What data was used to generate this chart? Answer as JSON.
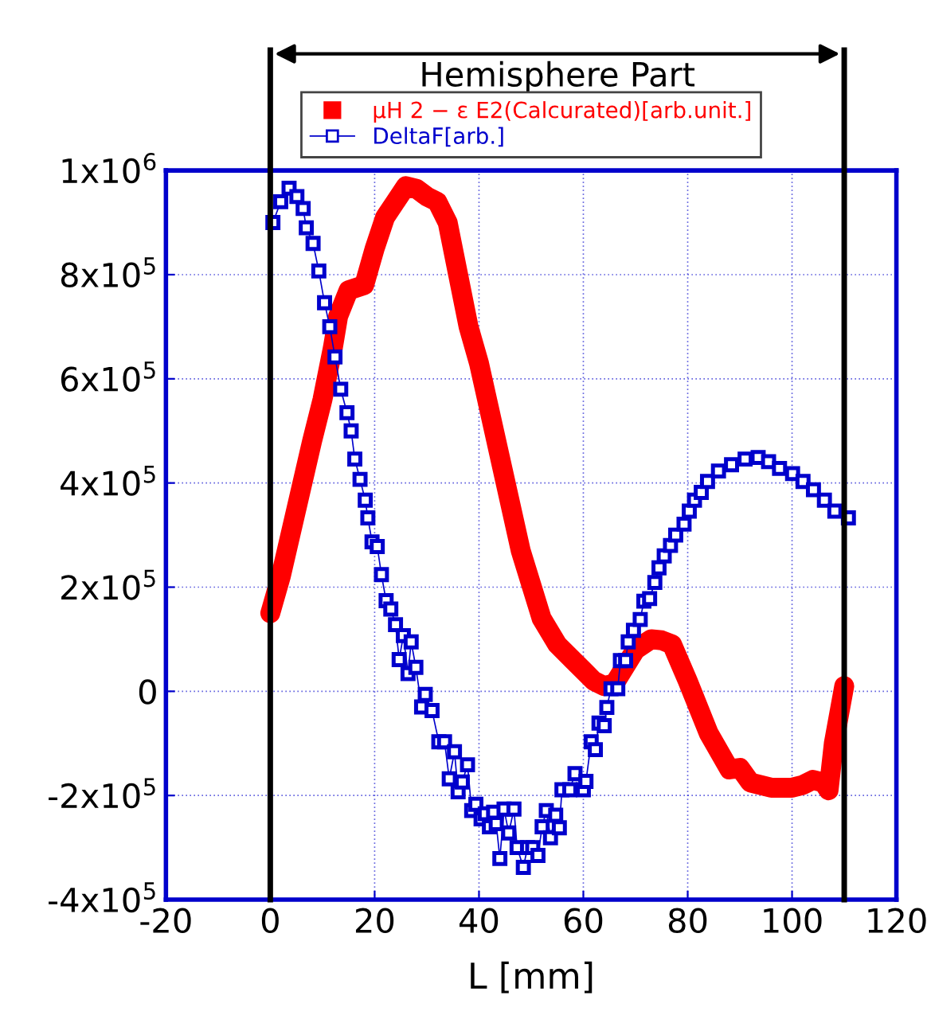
{
  "chart_data": {
    "type": "line",
    "xlabel": "L [mm]",
    "annotations": [
      "Hemisphere Part"
    ],
    "xlim": [
      -20,
      120
    ],
    "xticks": [
      -20,
      0,
      20,
      40,
      60,
      80,
      100,
      120
    ],
    "ylim": [
      -400000,
      1000000
    ],
    "yticks": [
      {
        "value": -400000,
        "label": "-4x10$^{5}$"
      },
      {
        "value": -200000,
        "label": "-2x10$^{5}$"
      },
      0,
      {
        "value": 200000,
        "label": "2x10$^{5}$"
      },
      {
        "value": 400000,
        "label": "4x10$^{5}$"
      },
      {
        "value": 600000,
        "label": "6x10$^{5}$"
      },
      {
        "value": 800000,
        "label": "8x10$^{5}$"
      },
      {
        "value": 1000000,
        "label": "1x10$^{6}$"
      }
    ],
    "grid": true,
    "legend": "top",
    "ref_lines": [
      {
        "axis": "x",
        "value": 0,
        "color": "#000000"
      },
      {
        "axis": "x",
        "value": 110,
        "color": "#000000"
      }
    ],
    "series": [
      {
        "name": "μH 2 − ε E2(Calcurated)[arb.unit.]",
        "color": "#ff0000",
        "marker": "none",
        "line_style": "solid",
        "x": [
          0,
          2,
          5,
          8,
          10,
          12,
          13,
          15,
          18,
          20,
          22,
          24,
          26,
          28,
          30,
          32,
          34,
          36,
          38,
          40,
          44,
          48,
          52,
          55,
          58,
          60,
          62,
          64,
          66,
          70,
          73,
          75,
          77,
          80,
          84,
          88,
          90,
          92,
          96,
          100,
          102,
          104,
          106,
          107,
          108,
          110
        ],
        "values": [
          150000,
          220000,
          350000,
          480000,
          560000,
          660000,
          720000,
          770000,
          780000,
          850000,
          910000,
          940000,
          970000,
          965000,
          950000,
          940000,
          900000,
          800000,
          700000,
          630000,
          450000,
          270000,
          140000,
          90000,
          60000,
          40000,
          20000,
          10000,
          15000,
          80000,
          100000,
          98000,
          90000,
          20000,
          -80000,
          -150000,
          -147000,
          -175000,
          -185000,
          -185000,
          -180000,
          -170000,
          -175000,
          -190000,
          -100000,
          10000
        ]
      },
      {
        "name": "DeltaF[arb.]",
        "color": "#0000cc",
        "marker": "square",
        "line_style": "solid",
        "x": [
          0.5,
          2,
          3.6,
          5.1,
          6.3,
          6.9,
          8.2,
          9.3,
          10.4,
          11.4,
          12.4,
          13.5,
          14.7,
          15.5,
          16.2,
          17.2,
          18.2,
          18.7,
          19.5,
          20.5,
          21.3,
          22.2,
          23.1,
          24,
          24.7,
          25.5,
          26.4,
          27,
          27.9,
          29,
          29.7,
          31,
          32.3,
          33.4,
          34.3,
          35.3,
          36,
          36.8,
          37.8,
          38.6,
          39.4,
          40.4,
          41.2,
          42,
          42.8,
          43.3,
          44,
          44.8,
          45.7,
          46.7,
          47.3,
          48.5,
          49.3,
          50.3,
          51.3,
          52.1,
          52.9,
          53.7,
          54.7,
          55.4,
          55.9,
          57.4,
          58.4,
          60,
          60.5,
          61.5,
          62.3,
          63,
          64,
          64.5,
          65.3,
          66.6,
          67.1,
          68.1,
          68.6,
          69.6,
          70.9,
          71.6,
          72.7,
          73.7,
          74.5,
          75.5,
          76.7,
          77.7,
          79.3,
          80.3,
          81.3,
          82.6,
          83.8,
          85.9,
          88.4,
          91,
          93.5,
          95.5,
          97.6,
          100.1,
          102.1,
          104.1,
          106.2,
          108.2,
          110.8
        ],
        "values": [
          900000,
          940000,
          966000,
          950000,
          927000,
          890000,
          860000,
          807000,
          746000,
          700000,
          642000,
          580000,
          535000,
          500000,
          446000,
          407000,
          367000,
          333000,
          287000,
          278000,
          224000,
          174000,
          158000,
          128000,
          61000,
          107000,
          34000,
          95000,
          46000,
          -30000,
          -6000,
          -37000,
          -97000,
          -97000,
          -168000,
          -116000,
          -193000,
          -174000,
          -141000,
          -229000,
          -217000,
          -245000,
          -235000,
          -260000,
          -232000,
          -254000,
          -321000,
          -226000,
          -272000,
          -226000,
          -300000,
          -338000,
          -300000,
          -300000,
          -315000,
          -260000,
          -229000,
          -281000,
          -238000,
          -262000,
          -189000,
          -189000,
          -158000,
          -189000,
          -173000,
          -97000,
          -112000,
          -61000,
          -66000,
          -31000,
          5000,
          5000,
          59000,
          59000,
          95000,
          117000,
          138000,
          173000,
          178000,
          209000,
          237000,
          260000,
          280000,
          300000,
          321000,
          346000,
          367000,
          382000,
          403000,
          423000,
          435000,
          446000,
          449000,
          441000,
          428000,
          418000,
          403000,
          387000,
          367000,
          346000,
          333000
        ]
      }
    ]
  }
}
